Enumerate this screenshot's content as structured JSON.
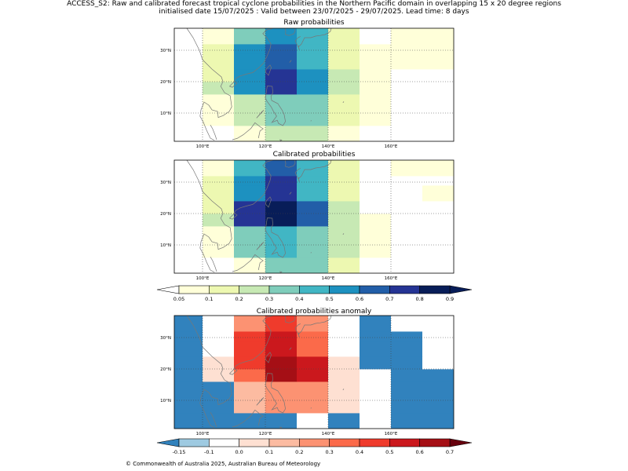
{
  "header": {
    "line1": "ACCESS_S2: Raw and calibrated forecast tropical cyclone probabilities in the Northern Pacific domain in overlapping 15 x 20 degree regions",
    "line2": "initialised date 15/07/2025 :  Valid between 23/07/2025 - 29/07/2025. Lead time: 8 days"
  },
  "maps": [
    {
      "title": "Raw probabilities"
    },
    {
      "title": "Calibrated probabilities"
    },
    {
      "title": "Calibrated probabilities anomaly"
    }
  ],
  "axes": {
    "lon_ticks": [
      "100°E",
      "120°E",
      "140°E",
      "160°E"
    ],
    "lon_values": [
      100,
      120,
      140,
      160
    ],
    "lat_ticks": [
      "10°N",
      "20°N",
      "30°N"
    ],
    "lat_values": [
      10,
      20,
      30
    ],
    "lon_range": [
      91,
      180
    ],
    "lat_range": [
      1,
      37
    ]
  },
  "colorbars": {
    "probability": {
      "labels": [
        "0.05",
        "0.1",
        "0.2",
        "0.3",
        "0.4",
        "0.5",
        "0.6",
        "0.7",
        "0.8",
        "0.9"
      ],
      "colors": [
        "#ffffd9",
        "#edf8b1",
        "#c7e9b4",
        "#7fcdbb",
        "#41b6c4",
        "#1d91c0",
        "#225ea8",
        "#253494",
        "#081d58"
      ],
      "under": "#ffffff",
      "over": "#081d58"
    },
    "anomaly": {
      "labels": [
        "-0.15",
        "-0.1",
        "0.0",
        "0.1",
        "0.2",
        "0.3",
        "0.4",
        "0.5",
        "0.6",
        "0.7"
      ],
      "colors": [
        "#9ecae1",
        "#ffffff",
        "#fee0d2",
        "#fcbba1",
        "#fc9272",
        "#fb6a4a",
        "#ef3b2c",
        "#cb181d",
        "#a50f15"
      ],
      "under": "#3182bd",
      "over": "#67000d"
    }
  },
  "chart_data": {
    "type": "heatmap",
    "lon_edges": [
      91,
      100,
      110,
      120,
      130,
      140,
      150,
      160,
      170,
      180
    ],
    "lat_bands": [
      {
        "lat": [
          1,
          6
        ]
      },
      {
        "lat": [
          6,
          11
        ]
      },
      {
        "lat": [
          11,
          16
        ]
      },
      {
        "lat": [
          16,
          20
        ]
      },
      {
        "lat": [
          20,
          24
        ]
      },
      {
        "lat": [
          24,
          29
        ]
      },
      {
        "lat": [
          29,
          32
        ]
      },
      {
        "lat": [
          32,
          37
        ]
      }
    ],
    "panels": [
      {
        "name": "Raw probabilities",
        "colorbar": "probability",
        "values": [
          [
            -1,
            -1,
            0.05,
            0.2,
            0.2,
            0.05,
            -1,
            -1,
            -1
          ],
          [
            -1,
            0.05,
            0.2,
            0.3,
            0.3,
            0.1,
            0.05,
            -1,
            -1
          ],
          [
            -1,
            0.05,
            0.2,
            0.3,
            0.3,
            0.1,
            0.05,
            -1,
            -1
          ],
          [
            -1,
            0.2,
            0.5,
            0.7,
            0.5,
            0.2,
            0.05,
            -1,
            -1
          ],
          [
            -1,
            0.1,
            0.5,
            0.7,
            0.5,
            0.2,
            0.05,
            -1,
            -1
          ],
          [
            -1,
            0.1,
            0.5,
            0.6,
            0.4,
            0.1,
            0.05,
            0.05,
            0.05
          ],
          [
            -1,
            0.1,
            0.5,
            0.6,
            0.4,
            0.1,
            0.05,
            0.05,
            0.05
          ],
          [
            -1,
            0.05,
            0.3,
            0.5,
            0.4,
            0.1,
            -1,
            0.05,
            0.05
          ]
        ]
      },
      {
        "name": "Calibrated probabilities",
        "colorbar": "probability",
        "values": [
          [
            -1,
            -1,
            0.05,
            0.3,
            0.3,
            0.1,
            -1,
            -1,
            -1
          ],
          [
            -1,
            0.05,
            0.3,
            0.4,
            0.3,
            0.2,
            0.05,
            -1,
            -1
          ],
          [
            -1,
            0.05,
            0.3,
            0.4,
            0.3,
            0.2,
            0.05,
            -1,
            -1
          ],
          [
            -1,
            0.2,
            0.7,
            0.8,
            0.6,
            0.2,
            0.05,
            -1,
            -1
          ],
          [
            -1,
            0.1,
            0.7,
            0.8,
            0.6,
            0.2,
            -1,
            -1,
            -1
          ],
          [
            -1,
            0.1,
            0.5,
            0.7,
            0.4,
            0.1,
            -1,
            -1,
            0.05
          ],
          [
            -1,
            0.1,
            0.5,
            0.7,
            0.4,
            0.1,
            -1,
            -1,
            -1
          ],
          [
            -1,
            0.05,
            0.4,
            0.6,
            0.4,
            0.1,
            -1,
            0.05,
            0.05
          ]
        ]
      },
      {
        "name": "Calibrated probabilities anomaly",
        "colorbar": "anomaly",
        "values": [
          [
            -0.2,
            -0.2,
            -0.2,
            -0.2,
            -0.1,
            -0.2,
            -0.1,
            -0.2,
            -0.2
          ],
          [
            -0.2,
            -0.2,
            0.1,
            0.2,
            0.2,
            0.0,
            -0.1,
            -0.2,
            -0.2
          ],
          [
            -0.2,
            -0.2,
            0.1,
            0.2,
            0.2,
            0.0,
            -0.1,
            -0.2,
            -0.2
          ],
          [
            -0.2,
            0.0,
            0.3,
            0.6,
            0.5,
            0.0,
            -0.1,
            -0.2,
            -0.2
          ],
          [
            -0.2,
            0.0,
            0.4,
            0.6,
            0.5,
            0.0,
            -0.2,
            -0.2,
            -0.1
          ],
          [
            -0.2,
            -0.1,
            0.4,
            0.5,
            0.3,
            -0.1,
            -0.2,
            -0.2,
            -0.1
          ],
          [
            -0.2,
            -0.1,
            0.4,
            0.5,
            0.3,
            -0.1,
            -0.2,
            -0.2,
            -0.1
          ],
          [
            -0.2,
            -0.1,
            0.2,
            0.4,
            0.2,
            -0.1,
            -0.2,
            -0.1,
            -0.1
          ]
        ]
      }
    ]
  },
  "footer": {
    "text": "© Commonwealth of Australia 2025, Australian Bureau of Meteorology"
  }
}
